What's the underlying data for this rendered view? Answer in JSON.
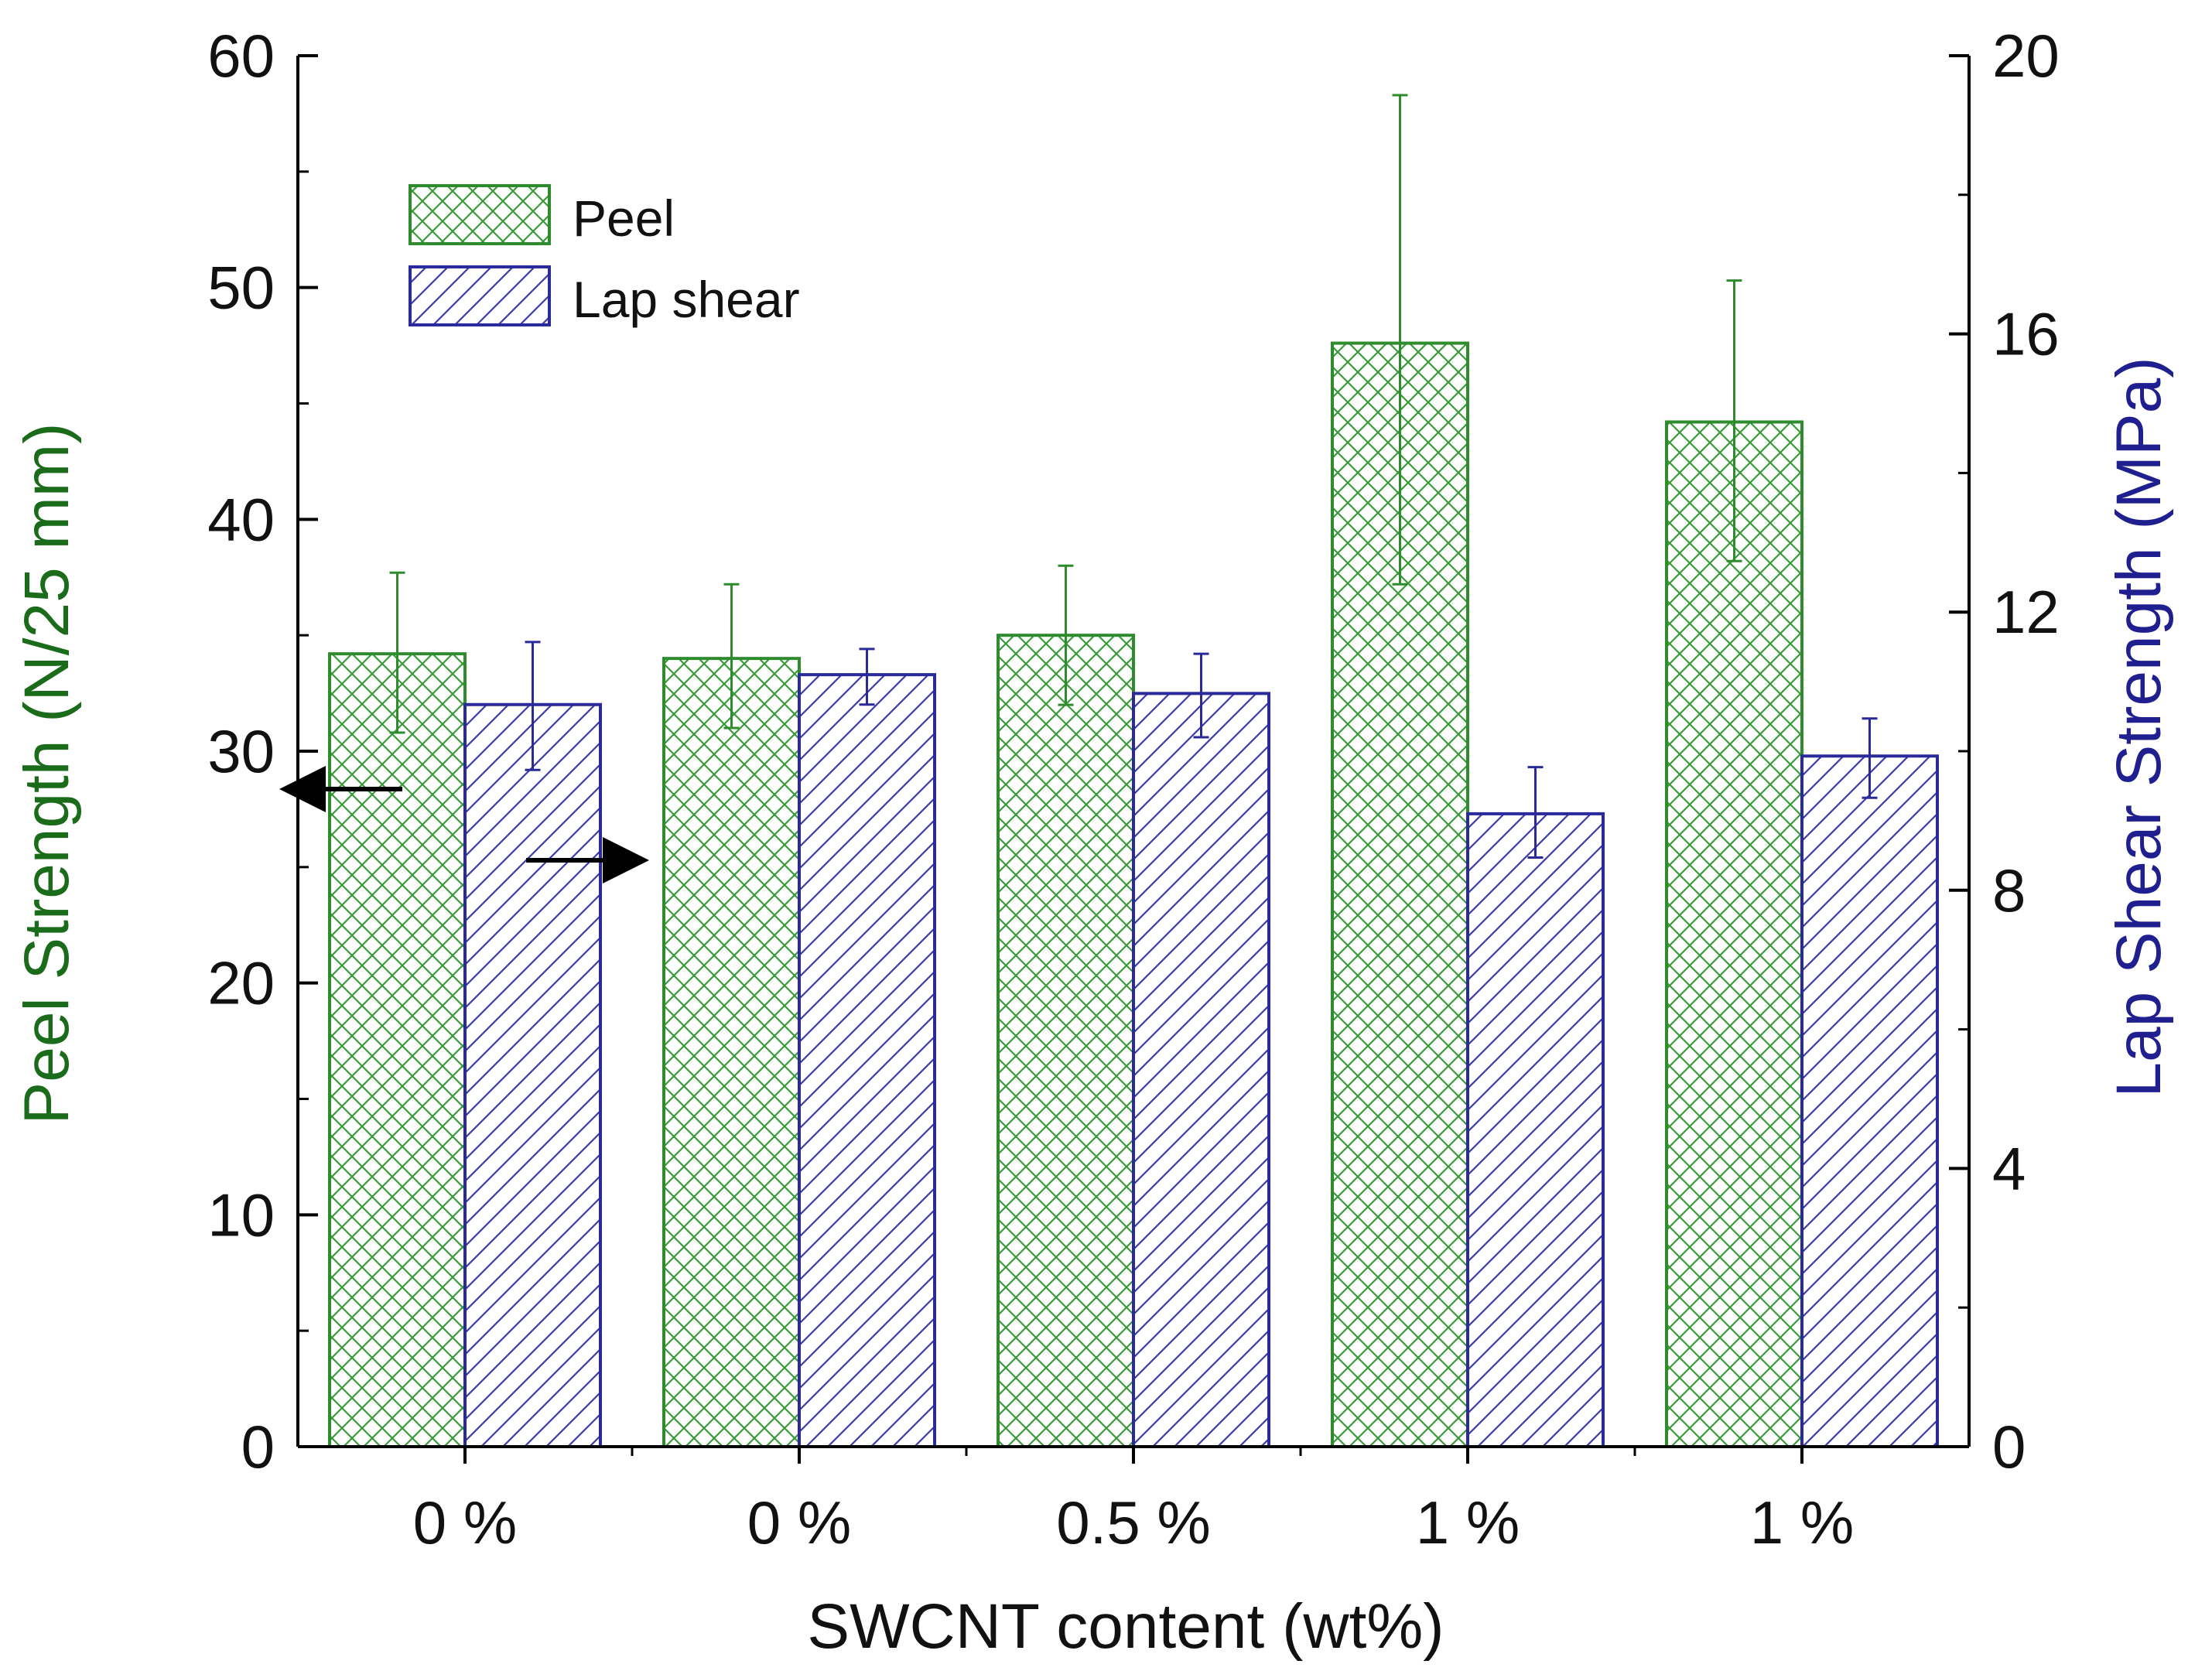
{
  "chart_data": {
    "type": "bar",
    "title": "",
    "xlabel": "SWCNT content (wt%)",
    "categories": [
      "0 %",
      "0 %",
      "0.5 %",
      "1 %",
      "1 %"
    ],
    "y_left": {
      "label": "Peel Strength (N/25 mm)",
      "lim": [
        0,
        60
      ],
      "ticks": [
        0,
        10,
        20,
        30,
        40,
        50,
        60
      ],
      "color": "#1a6b1a"
    },
    "y_right": {
      "label": "Lap Shear Strength (MPa)",
      "lim": [
        0,
        20
      ],
      "ticks": [
        0,
        4,
        8,
        12,
        16,
        20
      ],
      "color": "#1f1f8f"
    },
    "series": [
      {
        "name": "Peel",
        "axis": "left",
        "pattern": "crosshatch",
        "color": "#2e8b2e",
        "values": [
          34.2,
          34.0,
          35.0,
          47.6,
          44.2
        ],
        "error_low": [
          30.8,
          31.0,
          32.0,
          37.2,
          38.2
        ],
        "error_high": [
          37.7,
          37.2,
          38.0,
          58.3,
          50.3
        ]
      },
      {
        "name": "Lap shear",
        "axis": "right",
        "pattern": "diagonal",
        "color": "#2a2a9a",
        "values": [
          10.67,
          11.1,
          10.83,
          9.1,
          9.93
        ],
        "error_low": [
          9.73,
          10.67,
          10.2,
          8.47,
          9.33
        ],
        "error_high": [
          11.57,
          11.47,
          11.4,
          9.77,
          10.47
        ]
      }
    ],
    "legend": {
      "position": "top-left",
      "entries": [
        "Peel",
        "Lap shear"
      ]
    },
    "annotations": [
      {
        "type": "arrow",
        "points_to": "left-axis",
        "series": "Peel"
      },
      {
        "type": "arrow",
        "points_to": "right-axis",
        "series": "Lap shear"
      }
    ],
    "grid": false
  }
}
